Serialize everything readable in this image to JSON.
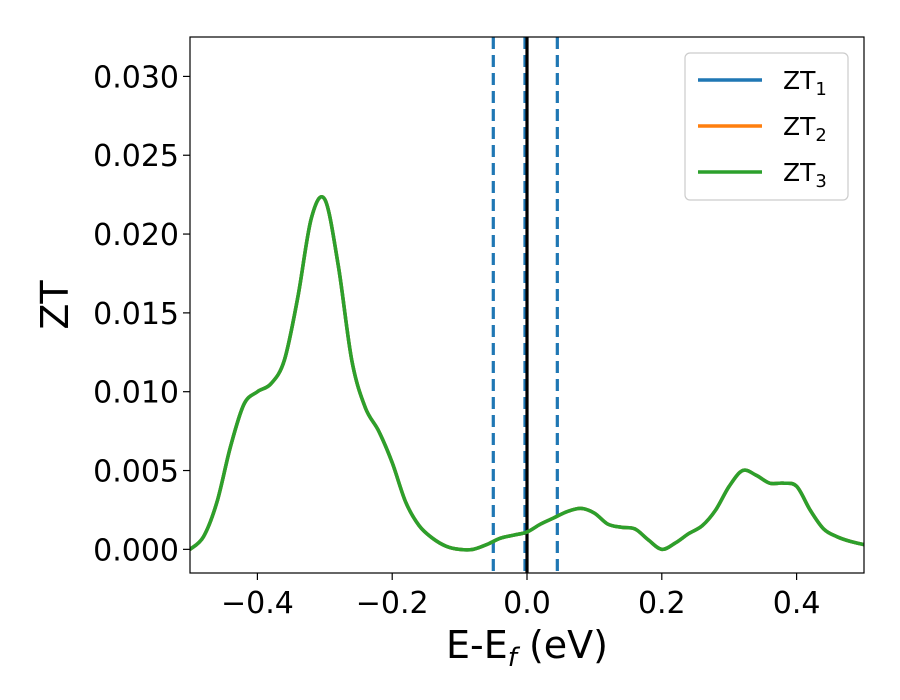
{
  "chart_data": {
    "type": "line",
    "xlabel": "E-E",
    "xlabel_sub": "f",
    "xlabel_unit": " (eV)",
    "ylabel": "ZT",
    "xlim": [
      -0.5,
      0.5
    ],
    "ylim": [
      -0.0015,
      0.0325
    ],
    "xticks": [
      -0.4,
      -0.2,
      0.0,
      0.2,
      0.4
    ],
    "xtick_labels": [
      "−0.4",
      "−0.2",
      "0.0",
      "0.2",
      "0.4"
    ],
    "yticks": [
      0.0,
      0.005,
      0.01,
      0.015,
      0.02,
      0.025,
      0.03
    ],
    "ytick_labels": [
      "0.000",
      "0.005",
      "0.010",
      "0.015",
      "0.020",
      "0.025",
      "0.030"
    ],
    "grid": false,
    "legend_position": "top-right",
    "vlines": [
      {
        "x": -0.05,
        "style": "dashed",
        "color": "#1f77b4"
      },
      {
        "x": -0.003,
        "style": "dashed",
        "color": "#1f77b4"
      },
      {
        "x": 0.045,
        "style": "dashed",
        "color": "#1f77b4"
      },
      {
        "x": 0.0,
        "style": "solid",
        "color": "#000000"
      }
    ],
    "x": [
      -0.5,
      -0.48,
      -0.46,
      -0.44,
      -0.42,
      -0.4,
      -0.38,
      -0.36,
      -0.34,
      -0.32,
      -0.3,
      -0.28,
      -0.26,
      -0.24,
      -0.22,
      -0.2,
      -0.18,
      -0.16,
      -0.14,
      -0.12,
      -0.1,
      -0.08,
      -0.06,
      -0.04,
      -0.02,
      0.0,
      0.02,
      0.04,
      0.06,
      0.08,
      0.1,
      0.12,
      0.14,
      0.16,
      0.18,
      0.2,
      0.22,
      0.24,
      0.26,
      0.28,
      0.3,
      0.32,
      0.34,
      0.36,
      0.38,
      0.4,
      0.42,
      0.44,
      0.46,
      0.48,
      0.5
    ],
    "series": [
      {
        "name": "ZT",
        "name_sub": "1",
        "color": "#1f77b4",
        "values": [
          0.0,
          0.0008,
          0.003,
          0.0065,
          0.0092,
          0.01,
          0.0105,
          0.012,
          0.016,
          0.021,
          0.0222,
          0.018,
          0.012,
          0.009,
          0.0075,
          0.0055,
          0.003,
          0.0015,
          0.0007,
          0.0002,
          0.0,
          0.0,
          0.0003,
          0.0007,
          0.0009,
          0.0011,
          0.0016,
          0.002,
          0.0024,
          0.0026,
          0.0023,
          0.0016,
          0.0014,
          0.0013,
          0.0006,
          0.0,
          0.0004,
          0.001,
          0.0015,
          0.0025,
          0.004,
          0.005,
          0.0047,
          0.0042,
          0.0042,
          0.004,
          0.0025,
          0.0013,
          0.0008,
          0.0005,
          0.0003
        ]
      },
      {
        "name": "ZT",
        "name_sub": "2",
        "color": "#ff7f0e",
        "values": [
          0.0,
          0.0008,
          0.003,
          0.0065,
          0.0092,
          0.01,
          0.0105,
          0.012,
          0.016,
          0.021,
          0.0222,
          0.018,
          0.012,
          0.009,
          0.0075,
          0.0055,
          0.003,
          0.0015,
          0.0007,
          0.0002,
          0.0,
          0.0,
          0.0003,
          0.0007,
          0.0009,
          0.0011,
          0.0016,
          0.002,
          0.0024,
          0.0026,
          0.0023,
          0.0016,
          0.0014,
          0.0013,
          0.0006,
          0.0,
          0.0004,
          0.001,
          0.0015,
          0.0025,
          0.004,
          0.005,
          0.0047,
          0.0042,
          0.0042,
          0.004,
          0.0025,
          0.0013,
          0.0008,
          0.0005,
          0.0003
        ]
      },
      {
        "name": "ZT",
        "name_sub": "3",
        "color": "#2ca02c",
        "values": [
          0.0,
          0.0008,
          0.003,
          0.0065,
          0.0092,
          0.01,
          0.0105,
          0.012,
          0.016,
          0.021,
          0.0222,
          0.018,
          0.012,
          0.009,
          0.0075,
          0.0055,
          0.003,
          0.0015,
          0.0007,
          0.0002,
          0.0,
          0.0,
          0.0003,
          0.0007,
          0.0009,
          0.0011,
          0.0016,
          0.002,
          0.0024,
          0.0026,
          0.0023,
          0.0016,
          0.0014,
          0.0013,
          0.0006,
          0.0,
          0.0004,
          0.001,
          0.0015,
          0.0025,
          0.004,
          0.005,
          0.0047,
          0.0042,
          0.0042,
          0.004,
          0.0025,
          0.0013,
          0.0008,
          0.0005,
          0.0003
        ]
      }
    ]
  }
}
